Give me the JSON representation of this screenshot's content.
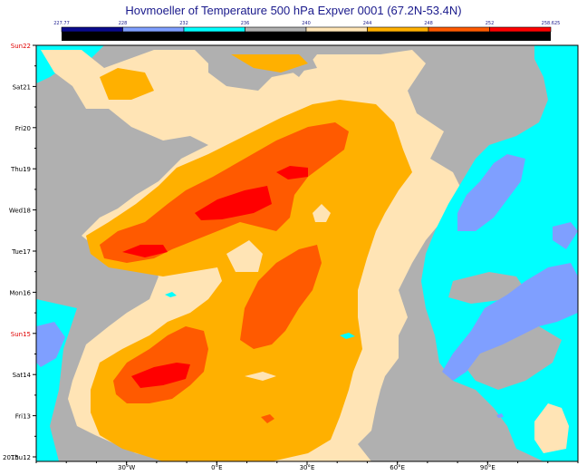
{
  "chart_data": {
    "type": "heatmap",
    "title": "Hovmoeller of Temperature 500 hPa Expver 0001 (67.2N-53.4N)",
    "colorbar": {
      "labels": [
        "227.77",
        "228",
        "232",
        "236",
        "240",
        "244",
        "248",
        "252",
        "258.625"
      ],
      "colors": [
        "#0a0a8c",
        "#7f9fff",
        "#00ffff",
        "#b0b0b0",
        "#ffe4b5",
        "#ffb000",
        "#ff5a00",
        "#ff0000"
      ]
    },
    "x_ticks": [
      {
        "label": "30°W",
        "lon": -30
      },
      {
        "label": "0°E",
        "lon": 0
      },
      {
        "label": "30°E",
        "lon": 30
      },
      {
        "label": "60°E",
        "lon": 60
      },
      {
        "label": "90°E",
        "lon": 90
      }
    ],
    "x_range": [
      -60,
      120
    ],
    "y_ticks": [
      {
        "label": "2015",
        "day": 0
      },
      {
        "label": "Thu12",
        "day": 0
      },
      {
        "label": "Fri13",
        "day": 1
      },
      {
        "label": "Sat14",
        "day": 2
      },
      {
        "label": "Sun15",
        "day": 3,
        "red": true
      },
      {
        "label": "Mon16",
        "day": 4
      },
      {
        "label": "Tue17",
        "day": 5
      },
      {
        "label": "Wed18",
        "day": 6
      },
      {
        "label": "Thu19",
        "day": 7
      },
      {
        "label": "Fri20",
        "day": 8
      },
      {
        "label": "Sat21",
        "day": 9
      },
      {
        "label": "Sun22",
        "day": 10,
        "red": true
      }
    ],
    "y_range": [
      0,
      10
    ]
  }
}
